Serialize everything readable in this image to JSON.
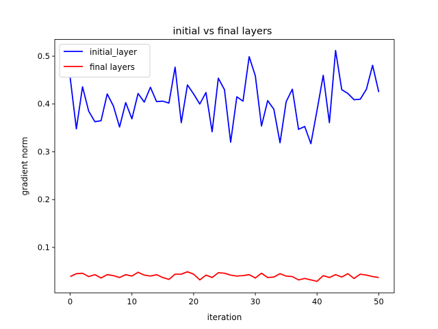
{
  "chart_data": {
    "type": "line",
    "title": "initial vs final layers",
    "xlabel": "iteration",
    "ylabel": "gradient norm",
    "xlim": [
      -2.5,
      52.5
    ],
    "ylim": [
      0.005,
      0.535
    ],
    "xticks": [
      0,
      10,
      20,
      30,
      40,
      50
    ],
    "xtick_labels": [
      "0",
      "10",
      "20",
      "30",
      "40",
      "50"
    ],
    "yticks": [
      0.1,
      0.2,
      0.3,
      0.4,
      0.5
    ],
    "ytick_labels": [
      "0.1",
      "0.2",
      "0.3",
      "0.4",
      "0.5"
    ],
    "grid": false,
    "legend": "top-left",
    "x": [
      0,
      1,
      2,
      3,
      4,
      5,
      6,
      7,
      8,
      9,
      10,
      11,
      12,
      13,
      14,
      15,
      16,
      17,
      18,
      19,
      20,
      21,
      22,
      23,
      24,
      25,
      26,
      27,
      28,
      29,
      30,
      31,
      32,
      33,
      34,
      35,
      36,
      37,
      38,
      39,
      40,
      41,
      42,
      43,
      44,
      45,
      46,
      47,
      48,
      49,
      50
    ],
    "series": [
      {
        "name": "initial_layer",
        "color": "#0000ff",
        "values": [
          0.455,
          0.348,
          0.436,
          0.385,
          0.363,
          0.365,
          0.421,
          0.396,
          0.352,
          0.403,
          0.369,
          0.422,
          0.404,
          0.435,
          0.405,
          0.406,
          0.402,
          0.477,
          0.361,
          0.44,
          0.421,
          0.4,
          0.424,
          0.342,
          0.454,
          0.43,
          0.32,
          0.415,
          0.406,
          0.499,
          0.459,
          0.354,
          0.407,
          0.389,
          0.319,
          0.405,
          0.431,
          0.347,
          0.353,
          0.317,
          0.387,
          0.46,
          0.361,
          0.512,
          0.43,
          0.422,
          0.409,
          0.41,
          0.431,
          0.481,
          0.425
        ]
      },
      {
        "name": "final layers",
        "color": "#ff0000",
        "values": [
          0.039,
          0.045,
          0.046,
          0.039,
          0.043,
          0.036,
          0.043,
          0.041,
          0.037,
          0.043,
          0.04,
          0.048,
          0.042,
          0.04,
          0.043,
          0.037,
          0.033,
          0.044,
          0.044,
          0.049,
          0.044,
          0.032,
          0.042,
          0.037,
          0.047,
          0.046,
          0.042,
          0.04,
          0.041,
          0.043,
          0.036,
          0.046,
          0.037,
          0.038,
          0.045,
          0.04,
          0.039,
          0.032,
          0.035,
          0.032,
          0.029,
          0.041,
          0.037,
          0.043,
          0.038,
          0.045,
          0.035,
          0.044,
          0.042,
          0.039,
          0.037
        ]
      }
    ]
  }
}
